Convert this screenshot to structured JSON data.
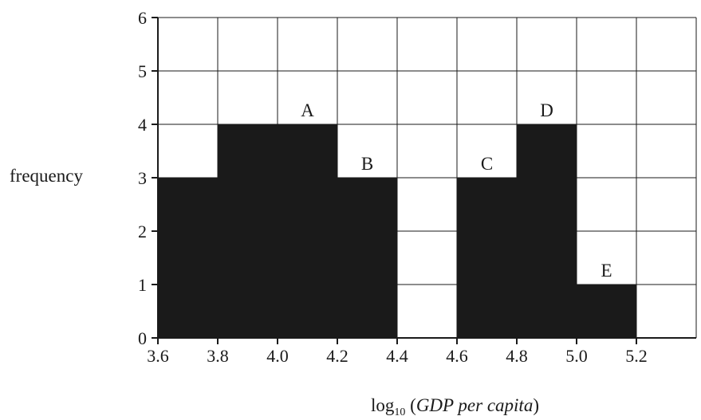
{
  "chart_data": {
    "type": "bar",
    "subtype": "histogram",
    "bins": [
      {
        "x0": 3.6,
        "x1": 3.8,
        "value": 3,
        "label": ""
      },
      {
        "x0": 3.8,
        "x1": 4.0,
        "value": 4,
        "label": ""
      },
      {
        "x0": 4.0,
        "x1": 4.2,
        "value": 4,
        "label": "A"
      },
      {
        "x0": 4.2,
        "x1": 4.4,
        "value": 3,
        "label": "B"
      },
      {
        "x0": 4.4,
        "x1": 4.6,
        "value": 0,
        "label": ""
      },
      {
        "x0": 4.6,
        "x1": 4.8,
        "value": 3,
        "label": "C"
      },
      {
        "x0": 4.8,
        "x1": 5.0,
        "value": 4,
        "label": "D"
      },
      {
        "x0": 5.0,
        "x1": 5.2,
        "value": 1,
        "label": "E"
      }
    ],
    "ylabel": "frequency",
    "xlabel_prefix": "log",
    "xlabel_subscript": "10",
    "xlabel_open": " (",
    "xlabel_italic": "GDP per capita",
    "xlabel_close": ")",
    "xlim": [
      3.6,
      5.4
    ],
    "ylim": [
      0,
      6
    ],
    "xticks": [
      "3.6",
      "3.8",
      "4.0",
      "4.2",
      "4.4",
      "4.6",
      "4.8",
      "5.0",
      "5.2"
    ],
    "yticks": [
      "0",
      "1",
      "2",
      "3",
      "4",
      "5",
      "6"
    ],
    "grid": true,
    "bar_color": "#1a1a1a"
  }
}
